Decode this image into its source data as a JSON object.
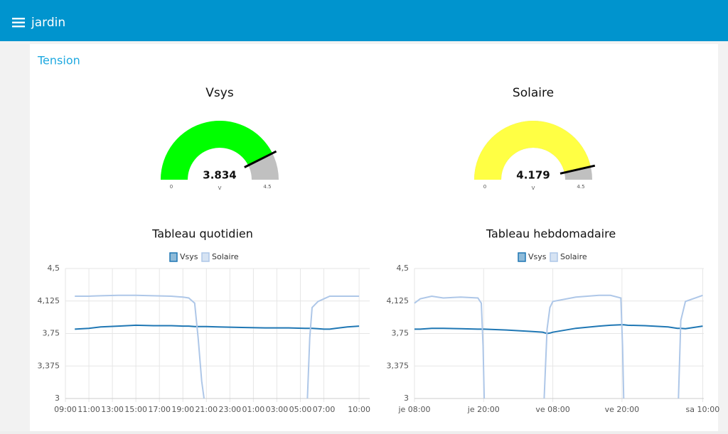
{
  "header": {
    "title": "jardin"
  },
  "group": {
    "title": "Tension"
  },
  "chart_data": [
    {
      "type": "gauge",
      "title": "Vsys",
      "value": 3.834,
      "units": "V",
      "ylim": [
        0,
        4.5
      ],
      "color": "#00ff00"
    },
    {
      "type": "gauge",
      "title": "Solaire",
      "value": 4.179,
      "units": "V",
      "ylim": [
        0,
        4.5
      ],
      "color": "#ffff44"
    },
    {
      "type": "line",
      "title": "Tableau quotidien",
      "x": [
        9.8,
        11,
        12,
        13.5,
        15,
        16.5,
        18,
        19,
        19.5,
        20,
        20.3,
        20.6,
        20.8,
        21,
        22,
        24,
        26,
        28,
        29.4,
        29.6,
        29.8,
        30,
        30.5,
        31,
        31.5,
        32,
        33,
        34
      ],
      "xlim": [
        9,
        34.9
      ],
      "xticks": [
        {
          "value": 9,
          "label": "09:00"
        },
        {
          "value": 11,
          "label": "11:00"
        },
        {
          "value": 13,
          "label": "13:00"
        },
        {
          "value": 15,
          "label": "15:00"
        },
        {
          "value": 17,
          "label": "17:00"
        },
        {
          "value": 19,
          "label": "19:00"
        },
        {
          "value": 21,
          "label": "21:00"
        },
        {
          "value": 23,
          "label": "23:00"
        },
        {
          "value": 25,
          "label": "01:00"
        },
        {
          "value": 27,
          "label": "03:00"
        },
        {
          "value": 29,
          "label": "05:00"
        },
        {
          "value": 31,
          "label": "07:00"
        },
        {
          "value": 34,
          "label": "10:00"
        }
      ],
      "ylim": [
        3,
        4.5
      ],
      "yticks": [
        3,
        {
          "value": 3.375,
          "label": "3,375"
        },
        {
          "value": 3.75,
          "label": "3,75"
        },
        {
          "value": 4.125,
          "label": "4,125"
        },
        {
          "value": 4.5,
          "label": "4,5"
        }
      ],
      "grid": true,
      "series": [
        {
          "name": "Vsys",
          "color": "#1f77b4",
          "values": [
            3.8,
            3.81,
            3.825,
            3.835,
            3.845,
            3.84,
            3.84,
            3.835,
            3.835,
            3.83,
            3.83,
            3.83,
            3.83,
            3.83,
            3.825,
            3.82,
            3.815,
            3.815,
            3.81,
            3.81,
            3.81,
            3.81,
            3.805,
            3.8,
            3.8,
            3.81,
            3.825,
            3.835
          ]
        },
        {
          "name": "Solaire",
          "color": "#aec7e8",
          "values": [
            4.18,
            4.18,
            4.185,
            4.19,
            4.19,
            4.185,
            4.18,
            4.17,
            4.16,
            4.1,
            3.7,
            3.2,
            3.0,
            null,
            null,
            null,
            null,
            null,
            null,
            3.0,
            3.7,
            4.05,
            4.12,
            4.15,
            4.18,
            4.18,
            4.18,
            4.18
          ]
        }
      ]
    },
    {
      "type": "line",
      "title": "Tableau hebdomadaire",
      "x": [
        8,
        9,
        11,
        13,
        16,
        19,
        19.6,
        19.9,
        20.1,
        24,
        28,
        30.3,
        30.5,
        31,
        31.5,
        32,
        36,
        40,
        42,
        43.8,
        44.1,
        44.3,
        45,
        48,
        52,
        53.6,
        53.8,
        54.2,
        55,
        58
      ],
      "xlim": [
        8,
        58.2
      ],
      "xticks": [
        {
          "value": 8,
          "label": "je 08:00"
        },
        {
          "value": 20,
          "label": "je 20:00"
        },
        {
          "value": 32,
          "label": "ve 08:00"
        },
        {
          "value": 44,
          "label": "ve 20:00"
        },
        {
          "value": 58,
          "label": "sa 10:00"
        }
      ],
      "ylim": [
        3,
        4.5
      ],
      "yticks": [
        3,
        {
          "value": 3.375,
          "label": "3,375"
        },
        {
          "value": 3.75,
          "label": "3,75"
        },
        {
          "value": 4.125,
          "label": "4,125"
        },
        {
          "value": 4.5,
          "label": "4,5"
        }
      ],
      "grid": true,
      "series": [
        {
          "name": "Vsys",
          "color": "#1f77b4",
          "values": [
            3.8,
            3.8,
            3.81,
            3.81,
            3.805,
            3.8,
            3.8,
            3.8,
            3.8,
            3.79,
            3.775,
            3.765,
            3.76,
            3.75,
            3.755,
            3.765,
            3.81,
            3.835,
            3.845,
            3.85,
            3.85,
            3.85,
            3.845,
            3.84,
            3.825,
            3.81,
            3.81,
            3.81,
            3.805,
            3.835
          ]
        },
        {
          "name": "Solaire",
          "color": "#aec7e8",
          "values": [
            4.1,
            4.15,
            4.18,
            4.16,
            4.17,
            4.16,
            4.1,
            3.6,
            3.0,
            null,
            null,
            null,
            3.0,
            3.8,
            4.05,
            4.12,
            4.17,
            4.19,
            4.19,
            4.16,
            3.6,
            3.0,
            null,
            null,
            null,
            null,
            3.0,
            3.9,
            4.12,
            4.19
          ]
        }
      ]
    }
  ]
}
